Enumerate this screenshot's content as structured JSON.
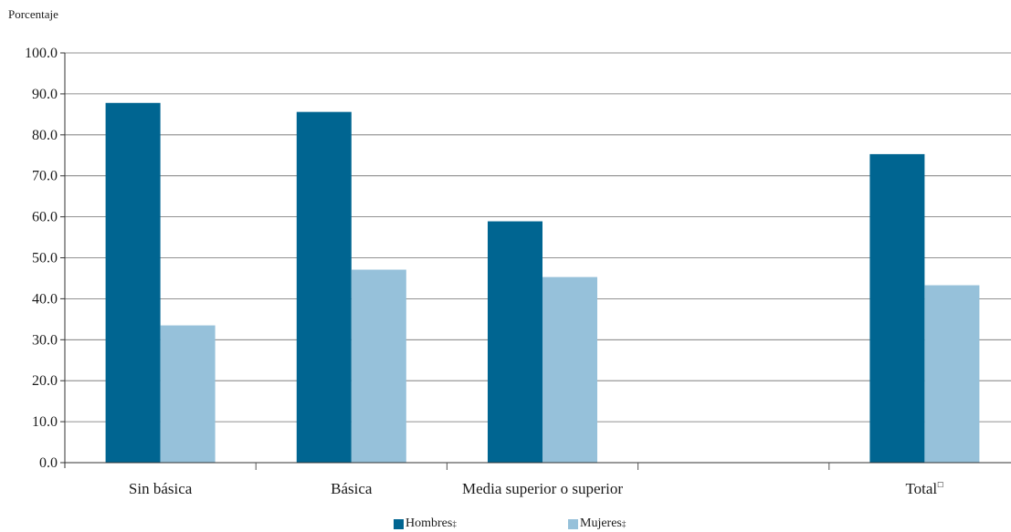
{
  "chart_data": {
    "type": "bar",
    "ylabel": "Porcentaje",
    "xlabel": "",
    "title": "",
    "ylim": [
      0,
      100
    ],
    "yticks": [
      "0.0",
      "10.0",
      "20.0",
      "30.0",
      "40.0",
      "50.0",
      "60.0",
      "70.0",
      "80.0",
      "90.0",
      "100.0"
    ],
    "categories": [
      "Sin básica",
      "Básica",
      "Media superior o superior",
      "",
      "Total"
    ],
    "category_marks": [
      "",
      "",
      "",
      "",
      "☐"
    ],
    "series": [
      {
        "name": "Hombres",
        "mark": "‡",
        "color": "#006591",
        "values": [
          87.8,
          85.6,
          58.9,
          null,
          75.3
        ]
      },
      {
        "name": "Mujeres",
        "mark": "‡",
        "color": "#96c1da",
        "values": [
          33.5,
          47.1,
          45.3,
          null,
          43.3
        ]
      }
    ],
    "grid": true,
    "legend_position": "bottom"
  }
}
